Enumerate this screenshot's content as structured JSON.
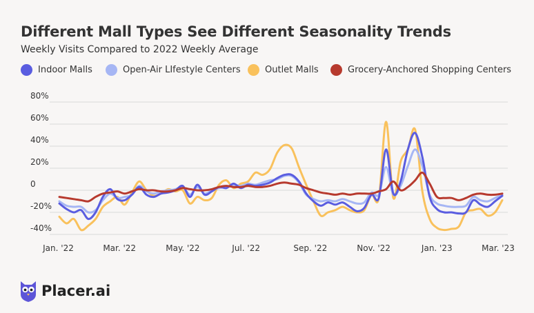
{
  "title": "Different Mall Types See Different Seasonality Trends",
  "subtitle": "Weekly Visits Compared to 2022 Weekly Average",
  "brand": {
    "name": "Placer.ai"
  },
  "colors": {
    "background": "#f8f6f5",
    "grid": "#d9d9d9",
    "indoor": "#5a5de0",
    "openair": "#a6b6f4",
    "outlet": "#f9c15c",
    "grocery": "#b73a2e",
    "logo": "#5d55d8"
  },
  "chart_data": {
    "type": "line",
    "title": "Different Mall Types See Different Seasonality Trends",
    "subtitle": "Weekly Visits Compared to 2022 Weekly Average",
    "xlabel": "",
    "ylabel": "",
    "y_unit": "%",
    "ylim": [
      -40,
      80
    ],
    "y_ticks": [
      -40,
      -20,
      0,
      20,
      40,
      60,
      80
    ],
    "y_tick_labels": [
      "-40%",
      "-20%",
      "0",
      "20%",
      "40%",
      "60%",
      "80%"
    ],
    "x_ticks": [
      "2022-01-01",
      "2022-03-01",
      "2022-05-01",
      "2022-07-01",
      "2022-09-01",
      "2022-11-01",
      "2023-01-01",
      "2023-03-01"
    ],
    "x_tick_labels": [
      "Jan. '22",
      "Mar. '22",
      "May. '22",
      "Jul. '22",
      "Sep. '22",
      "Nov. '22",
      "Jan. '23",
      "Mar. '23"
    ],
    "x": [
      "2022-01-02",
      "2022-01-09",
      "2022-01-16",
      "2022-01-23",
      "2022-01-30",
      "2022-02-06",
      "2022-02-13",
      "2022-02-20",
      "2022-02-27",
      "2022-03-06",
      "2022-03-13",
      "2022-03-20",
      "2022-03-27",
      "2022-04-03",
      "2022-04-10",
      "2022-04-17",
      "2022-04-24",
      "2022-05-01",
      "2022-05-08",
      "2022-05-15",
      "2022-05-22",
      "2022-05-29",
      "2022-06-05",
      "2022-06-12",
      "2022-06-19",
      "2022-06-26",
      "2022-07-03",
      "2022-07-10",
      "2022-07-17",
      "2022-07-24",
      "2022-07-31",
      "2022-08-07",
      "2022-08-14",
      "2022-08-21",
      "2022-08-28",
      "2022-09-04",
      "2022-09-11",
      "2022-09-18",
      "2022-09-25",
      "2022-10-02",
      "2022-10-09",
      "2022-10-16",
      "2022-10-23",
      "2022-10-30",
      "2022-11-06",
      "2022-11-13",
      "2022-11-20",
      "2022-11-27",
      "2022-12-04",
      "2022-12-11",
      "2022-12-18",
      "2022-12-25",
      "2023-01-01",
      "2023-01-08",
      "2023-01-15",
      "2023-01-22",
      "2023-01-29",
      "2023-02-05",
      "2023-02-12",
      "2023-02-19",
      "2023-02-26",
      "2023-03-05"
    ],
    "legend_position": "top",
    "grid": true,
    "series": [
      {
        "name": "Indoor Malls",
        "color": "#5a5de0",
        "values": [
          -12,
          -17,
          -20,
          -18,
          -26,
          -20,
          -6,
          1,
          -8,
          -9,
          -4,
          3,
          -4,
          -6,
          -3,
          -2,
          0,
          4,
          -6,
          5,
          -4,
          -1,
          3,
          2,
          6,
          2,
          5,
          4,
          5,
          7,
          11,
          14,
          14,
          8,
          -3,
          -10,
          -14,
          -11,
          -13,
          -11,
          -15,
          -19,
          -16,
          -4,
          -7,
          37,
          -3,
          8,
          37,
          52,
          30,
          -6,
          -17,
          -20,
          -20,
          -21,
          -20,
          -9,
          -13,
          -15,
          -10,
          -5
        ]
      },
      {
        "name": "Open-Air LIfestyle Centers",
        "color": "#a6b6f4",
        "values": [
          -10,
          -14,
          -15,
          -15,
          -20,
          -18,
          -9,
          -3,
          -7,
          -6,
          -4,
          4,
          -1,
          -3,
          -1,
          0,
          1,
          3,
          -4,
          3,
          -3,
          0,
          2,
          3,
          5,
          4,
          6,
          5,
          7,
          9,
          10,
          13,
          13,
          7,
          -4,
          -8,
          -10,
          -9,
          -10,
          -8,
          -10,
          -12,
          -11,
          -2,
          -4,
          21,
          -4,
          4,
          22,
          37,
          22,
          -4,
          -12,
          -14,
          -15,
          -15,
          -14,
          -6,
          -9,
          -10,
          -7,
          -4
        ]
      },
      {
        "name": "Outlet Malls",
        "color": "#f9c15c",
        "values": [
          -24,
          -30,
          -26,
          -36,
          -32,
          -26,
          -15,
          -10,
          -6,
          -13,
          -2,
          8,
          0,
          -5,
          -3,
          1,
          -1,
          0,
          -12,
          -6,
          -9,
          -7,
          5,
          9,
          2,
          6,
          8,
          16,
          14,
          19,
          34,
          41,
          38,
          21,
          5,
          -10,
          -23,
          -20,
          -18,
          -15,
          -18,
          -20,
          -18,
          -4,
          -7,
          62,
          -7,
          26,
          37,
          55,
          -1,
          -26,
          -34,
          -36,
          -35,
          -33,
          -20,
          -18,
          -17,
          -23,
          -20,
          -9
        ]
      },
      {
        "name": "Grocery-Anchored Shopping Centers",
        "color": "#b73a2e",
        "values": [
          -6,
          -7,
          -8,
          -9,
          -10,
          -6,
          -3,
          -2,
          -1,
          -3,
          -1,
          1,
          0,
          0,
          -1,
          -1,
          0,
          2,
          1,
          0,
          0,
          1,
          3,
          4,
          3,
          3,
          4,
          3,
          3,
          4,
          6,
          7,
          6,
          5,
          2,
          0,
          -2,
          -3,
          -4,
          -3,
          -4,
          -3,
          -3,
          -3,
          -1,
          1,
          8,
          0,
          3,
          9,
          16,
          6,
          -6,
          -7,
          -7,
          -9,
          -7,
          -4,
          -3,
          -4,
          -4,
          -3
        ]
      }
    ]
  }
}
